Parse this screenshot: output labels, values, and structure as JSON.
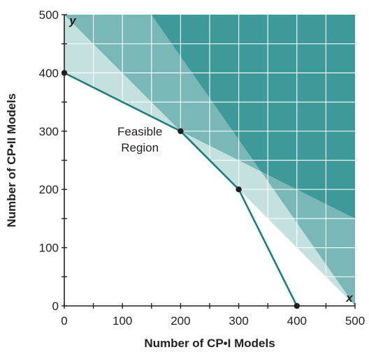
{
  "chart_data": {
    "type": "area",
    "title": "",
    "xlabel": "Number of CP•I Models",
    "ylabel": "Number of CP•II Models",
    "x_axis_letter": "x",
    "y_axis_letter": "y",
    "xlim": [
      0,
      500
    ],
    "ylim": [
      0,
      500
    ],
    "xticks": [
      0,
      100,
      200,
      300,
      400,
      500
    ],
    "yticks": [
      0,
      100,
      200,
      300,
      400,
      500
    ],
    "grid_step": 50,
    "grid": true,
    "region_label_line1": "Feasible",
    "region_label_line2": "Region",
    "region_label_center": [
      130,
      300
    ],
    "constraint_lines": [
      {
        "points": [
          [
            0,
            500
          ],
          [
            500,
            0
          ]
        ]
      },
      {
        "points": [
          [
            0,
            400
          ],
          [
            500,
            150
          ]
        ]
      },
      {
        "points": [
          [
            150,
            500
          ],
          [
            500,
            0
          ]
        ]
      }
    ],
    "feasible_boundary": [
      [
        0,
        400
      ],
      [
        200,
        300
      ],
      [
        300,
        200
      ],
      [
        400,
        0
      ]
    ],
    "vertices": [
      [
        0,
        400
      ],
      [
        200,
        300
      ],
      [
        300,
        200
      ],
      [
        400,
        0
      ]
    ],
    "colors": {
      "light_shade": "#c4e0df",
      "mid_shade": "#7ab8b7",
      "dark_shade": "#3e9a98",
      "boundary": "#1a7f7d",
      "grid": "#ffffff",
      "axis": "#231f20"
    }
  }
}
